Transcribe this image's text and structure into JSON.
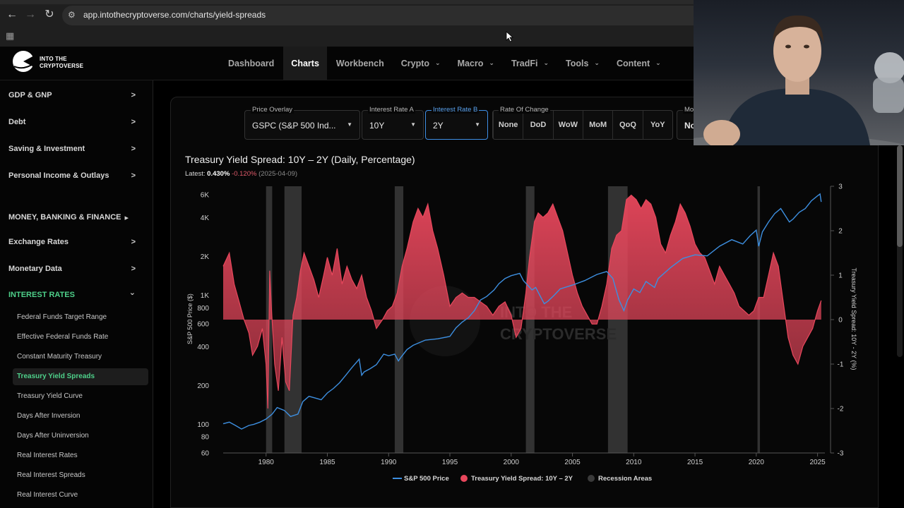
{
  "browser": {
    "url": "app.intothecryptoverse.com/charts/yield-spreads",
    "back_icon": "arrow-left",
    "forward_icon": "arrow-right",
    "reload_icon": "reload"
  },
  "header": {
    "logo_line1": "INTO THE",
    "logo_line2": "CRYPTOVERSE",
    "nav": [
      {
        "label": "Dashboard",
        "dropdown": false,
        "active": false
      },
      {
        "label": "Charts",
        "dropdown": false,
        "active": true
      },
      {
        "label": "Workbench",
        "dropdown": false,
        "active": false
      },
      {
        "label": "Crypto",
        "dropdown": true,
        "active": false
      },
      {
        "label": "Macro",
        "dropdown": true,
        "active": false
      },
      {
        "label": "TradFi",
        "dropdown": true,
        "active": false
      },
      {
        "label": "Tools",
        "dropdown": true,
        "active": false
      },
      {
        "label": "Content",
        "dropdown": true,
        "active": false
      }
    ]
  },
  "sidebar": {
    "sections": [
      {
        "label": "GDP & GNP",
        "arrow": ">"
      },
      {
        "label": "Debt",
        "arrow": ">"
      },
      {
        "label": "Saving & Investment",
        "arrow": ">"
      },
      {
        "label": "Personal Income & Outlays",
        "arrow": ">"
      },
      {
        "label": "MONEY, BANKING & FINANCE",
        "arrow": "▸"
      },
      {
        "label": "Exchange Rates",
        "arrow": ">"
      },
      {
        "label": "Monetary Data",
        "arrow": ">"
      },
      {
        "label": "INTEREST RATES",
        "arrow": "⌄"
      }
    ],
    "items": [
      {
        "label": "Federal Funds Target Range"
      },
      {
        "label": "Effective Federal Funds Rate"
      },
      {
        "label": "Constant Maturity Treasury"
      },
      {
        "label": "Treasury Yield Spreads"
      },
      {
        "label": "Treasury Yield Curve"
      },
      {
        "label": "Days After Inversion"
      },
      {
        "label": "Days After Uninversion"
      },
      {
        "label": "Real Interest Rates"
      },
      {
        "label": "Real Interest Spreads"
      },
      {
        "label": "Real Interest Curve"
      }
    ],
    "active_item": "Treasury Yield Spreads"
  },
  "controls": {
    "price_overlay": {
      "label": "Price Overlay",
      "value": "GSPC (S&P 500 Ind..."
    },
    "rate_a": {
      "label": "Interest Rate A",
      "value": "10Y"
    },
    "rate_b": {
      "label": "Interest Rate B",
      "value": "2Y"
    },
    "rate_of_change": {
      "label": "Rate Of Change",
      "options": [
        "None",
        "DoD",
        "WoW",
        "MoM",
        "QoQ",
        "YoY"
      ],
      "selected": "None"
    },
    "more": {
      "label": "Mov",
      "value": "No"
    }
  },
  "chart": {
    "title": "Treasury Yield Spread: 10Y – 2Y (Daily, Percentage)",
    "latest_label": "Latest:",
    "latest_value": "0.430%",
    "latest_change": "-0.120%",
    "latest_date": "(2025-04-09)",
    "watermark_line1": "INTO THE",
    "watermark_line2": "CRYPTOVERSE"
  },
  "chart_data": {
    "type": "line",
    "title": "Treasury Yield Spread: 10Y – 2Y (Daily, Percentage)",
    "xlabel": "",
    "ylabel_left": "S&P 500 Price ($)",
    "ylabel_right": "Treasury Yield Spread: 10Y - 2Y (%)",
    "x_ticks": [
      "1980",
      "1985",
      "1990",
      "1995",
      "2000",
      "2005",
      "2010",
      "2015",
      "2020",
      "2025"
    ],
    "y_left_ticks": [
      "6K",
      "4K",
      "2K",
      "1K",
      "800",
      "600",
      "400",
      "200",
      "100",
      "80",
      "60"
    ],
    "y_left_scale": "log",
    "y_left_lim": [
      60,
      7000
    ],
    "y_right_ticks": [
      "3",
      "2",
      "1",
      "0",
      "-1",
      "-2",
      "-3"
    ],
    "y_right_lim": [
      -3,
      3
    ],
    "x_lim": [
      1976.5,
      2025.6
    ],
    "legend": [
      "S&P 500 Price",
      "Treasury Yield Spread: 10Y – 2Y",
      "Recession Areas"
    ],
    "legend_position": "bottom",
    "colors": {
      "sp500": "#3d8fe0",
      "spread": "#e8475c",
      "recession": "#3a3a3a"
    },
    "recessions": [
      [
        1980.0,
        1980.5
      ],
      [
        1981.5,
        1982.9
      ],
      [
        1990.5,
        1991.2
      ],
      [
        2001.2,
        2001.9
      ],
      [
        2007.9,
        2009.5
      ],
      [
        2020.1,
        2020.3
      ]
    ],
    "series": [
      {
        "name": "S&P 500 Price",
        "x": [
          1976.5,
          1977.0,
          1977.5,
          1978.0,
          1978.6,
          1979.0,
          1979.5,
          1980.0,
          1980.5,
          1980.9,
          1981.5,
          1982.0,
          1982.6,
          1983.0,
          1983.5,
          1984.0,
          1984.5,
          1985.0,
          1985.5,
          1986.0,
          1986.5,
          1987.0,
          1987.6,
          1987.8,
          1988.0,
          1988.5,
          1989.0,
          1989.6,
          1990.0,
          1990.5,
          1990.8,
          1991.0,
          1991.5,
          1992.0,
          1993.0,
          1994.0,
          1995.0,
          1995.5,
          1996.0,
          1996.5,
          1997.0,
          1997.5,
          1998.0,
          1998.6,
          1999.0,
          1999.5,
          2000.0,
          2000.7,
          2001.0,
          2001.7,
          2002.0,
          2002.7,
          2003.0,
          2003.5,
          2004.0,
          2005.0,
          2006.0,
          2007.0,
          2007.8,
          2008.3,
          2008.8,
          2009.2,
          2009.5,
          2010.0,
          2010.5,
          2011.0,
          2011.7,
          2012.0,
          2013.0,
          2014.0,
          2015.0,
          2016.0,
          2017.0,
          2018.0,
          2018.9,
          2019.5,
          2020.0,
          2020.2,
          2020.5,
          2021.0,
          2021.5,
          2022.0,
          2022.7,
          2023.0,
          2023.5,
          2024.0,
          2024.5,
          2025.0,
          2025.2,
          2025.3
        ],
        "values": [
          101,
          104,
          98,
          92,
          98,
          100,
          104,
          110,
          120,
          135,
          128,
          115,
          120,
          150,
          165,
          160,
          155,
          175,
          190,
          210,
          240,
          275,
          320,
          240,
          255,
          270,
          290,
          350,
          340,
          350,
          310,
          330,
          380,
          410,
          450,
          460,
          480,
          560,
          620,
          670,
          760,
          920,
          980,
          1100,
          1230,
          1350,
          1420,
          1480,
          1300,
          1100,
          1150,
          860,
          900,
          1000,
          1120,
          1200,
          1300,
          1450,
          1530,
          1350,
          920,
          760,
          920,
          1120,
          1050,
          1280,
          1150,
          1350,
          1640,
          1930,
          2060,
          2020,
          2400,
          2700,
          2500,
          2900,
          3200,
          2400,
          3100,
          3700,
          4300,
          4700,
          3700,
          3900,
          4400,
          4700,
          5400,
          5900,
          6100,
          5300
        ]
      },
      {
        "name": "Treasury Yield Spread: 10Y – 2Y",
        "x": [
          1976.5,
          1977.0,
          1977.4,
          1977.8,
          1978.2,
          1978.6,
          1978.9,
          1979.3,
          1979.7,
          1980.0,
          1980.15,
          1980.3,
          1980.45,
          1980.7,
          1981.0,
          1981.3,
          1981.6,
          1981.9,
          1982.2,
          1982.5,
          1982.8,
          1983.1,
          1983.5,
          1983.9,
          1984.3,
          1984.7,
          1985.0,
          1985.4,
          1985.8,
          1986.2,
          1986.6,
          1987.0,
          1987.4,
          1987.8,
          1988.2,
          1988.6,
          1989.0,
          1989.5,
          1989.9,
          1990.3,
          1990.7,
          1991.1,
          1991.5,
          1992.0,
          1992.4,
          1992.8,
          1993.2,
          1993.6,
          1994.0,
          1994.5,
          1995.0,
          1995.5,
          1996.0,
          1996.5,
          1997.0,
          1997.5,
          1998.0,
          1998.5,
          1999.0,
          1999.5,
          2000.0,
          2000.4,
          2000.8,
          2001.2,
          2001.5,
          2001.9,
          2002.2,
          2002.6,
          2003.0,
          2003.4,
          2003.8,
          2004.2,
          2004.6,
          2005.0,
          2005.4,
          2005.8,
          2006.2,
          2006.6,
          2007.0,
          2007.4,
          2007.8,
          2008.2,
          2008.6,
          2009.0,
          2009.4,
          2009.8,
          2010.2,
          2010.6,
          2011.0,
          2011.4,
          2011.8,
          2012.2,
          2012.6,
          2013.0,
          2013.4,
          2013.8,
          2014.2,
          2014.6,
          2015.0,
          2015.4,
          2015.8,
          2016.2,
          2016.6,
          2017.0,
          2017.4,
          2017.8,
          2018.2,
          2018.6,
          2019.0,
          2019.4,
          2019.8,
          2020.2,
          2020.6,
          2021.0,
          2021.4,
          2021.8,
          2022.2,
          2022.6,
          2023.0,
          2023.4,
          2023.8,
          2024.2,
          2024.6,
          2025.0,
          2025.3
        ],
        "values": [
          1.2,
          1.5,
          0.8,
          0.4,
          0.0,
          -0.3,
          -0.8,
          -0.6,
          -0.2,
          -1.0,
          -2.0,
          1.1,
          0.2,
          -1.0,
          -1.6,
          -0.4,
          -1.4,
          -1.6,
          0.1,
          0.5,
          1.1,
          1.5,
          1.2,
          0.9,
          0.5,
          1.0,
          1.4,
          1.0,
          1.6,
          0.8,
          1.2,
          0.9,
          0.7,
          1.0,
          0.5,
          0.2,
          -0.2,
          0.0,
          0.2,
          0.3,
          0.6,
          1.2,
          1.6,
          2.2,
          2.5,
          2.3,
          2.6,
          2.0,
          1.6,
          1.0,
          0.3,
          0.5,
          0.6,
          0.5,
          0.5,
          0.4,
          0.3,
          0.1,
          0.3,
          0.4,
          0.1,
          -0.4,
          -0.2,
          0.6,
          1.4,
          2.2,
          2.4,
          2.3,
          2.4,
          2.6,
          2.3,
          2.0,
          1.5,
          1.0,
          0.6,
          0.3,
          0.1,
          -0.1,
          -0.1,
          0.3,
          0.8,
          1.6,
          1.9,
          2.0,
          2.7,
          2.8,
          2.7,
          2.5,
          2.7,
          2.6,
          2.3,
          1.7,
          1.5,
          1.9,
          2.2,
          2.6,
          2.4,
          2.1,
          1.7,
          1.5,
          1.4,
          1.1,
          0.8,
          1.2,
          1.0,
          0.8,
          0.6,
          0.3,
          0.2,
          0.1,
          0.2,
          0.5,
          0.5,
          1.0,
          1.5,
          1.2,
          0.4,
          -0.4,
          -0.8,
          -1.0,
          -0.6,
          -0.4,
          -0.2,
          0.2,
          0.43
        ]
      }
    ]
  }
}
